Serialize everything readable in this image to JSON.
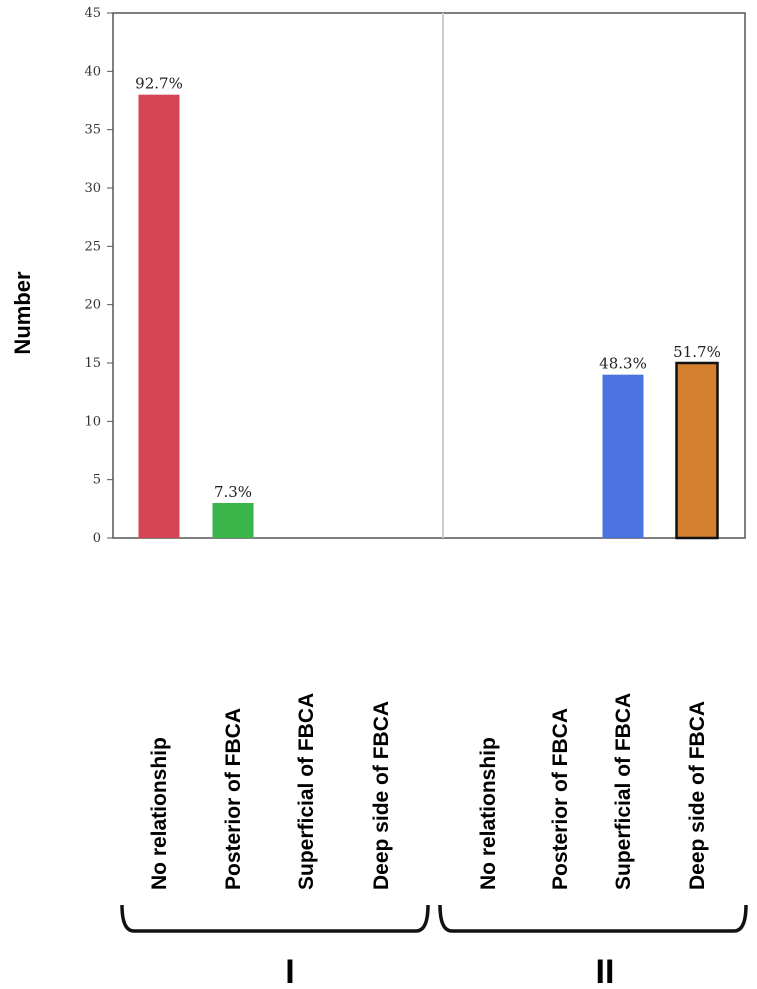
{
  "chart_data": {
    "type": "bar",
    "ylabel": "Number",
    "ylim": [
      0,
      45
    ],
    "yticks": [
      0,
      5,
      10,
      15,
      20,
      25,
      30,
      35,
      40,
      45
    ],
    "grid": false,
    "categories": [
      "No relationship",
      "Posterior of FBCA",
      "Superficial of FBCA",
      "Deep side of FBCA",
      "No relationship",
      "Posterior of FBCA",
      "Superficial of FBCA",
      "Deep side of FBCA"
    ],
    "groups": [
      {
        "label": "I",
        "categories": [
          "No relationship",
          "Posterior of FBCA",
          "Superficial of FBCA",
          "Deep side of FBCA"
        ]
      },
      {
        "label": "II",
        "categories": [
          "No relationship",
          "Posterior of FBCA",
          "Superficial of FBCA",
          "Deep side of FBCA"
        ]
      }
    ],
    "values": [
      38,
      3,
      0,
      0,
      0,
      0,
      14,
      15
    ],
    "data_labels": [
      "92.7%",
      "7.3%",
      "",
      "",
      "",
      "",
      "48.3%",
      "51.7%"
    ],
    "colors": [
      "#d64556",
      "#3ab54a",
      "#d64556",
      "#d64556",
      "#4f7be3",
      "#4f7be3",
      "#4a72e0",
      "#d4802e"
    ]
  }
}
